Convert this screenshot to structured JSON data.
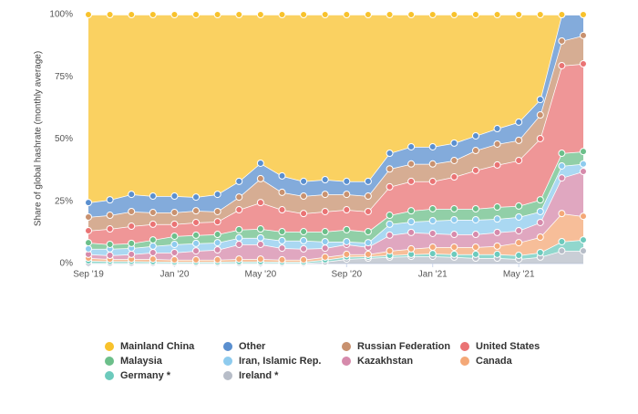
{
  "chart_data": {
    "type": "stacked-area",
    "y_label": "Share of global hashrate (monthly average)",
    "categories": [
      "Sep '19",
      null,
      null,
      null,
      "Jan '20",
      null,
      null,
      null,
      "May '20",
      null,
      null,
      null,
      "Sep '20",
      null,
      null,
      null,
      "Jan '21",
      null,
      null,
      null,
      "May '21",
      null,
      null,
      null
    ],
    "ylim": [
      0,
      100
    ],
    "yticks": [
      {
        "value": 0,
        "label": "0%"
      },
      {
        "value": 25,
        "label": "25%"
      },
      {
        "value": 50,
        "label": "50%"
      },
      {
        "value": 75,
        "label": "75%"
      },
      {
        "value": 100,
        "label": "100%"
      }
    ],
    "grid": false,
    "stacked": true,
    "series": [
      {
        "name": "Mainland China",
        "color": "#f8c22c",
        "values": [
          75.5,
          74.4,
          72.2,
          72.9,
          72.9,
          73.3,
          72.2,
          67.0,
          59.7,
          64.8,
          67.0,
          66.3,
          67.0,
          67.0,
          55.7,
          53.1,
          53.1,
          51.6,
          48.7,
          45.8,
          43.2,
          34.1,
          0,
          0
        ]
      },
      {
        "name": "Other",
        "color": "#5a8fcf",
        "values": [
          5.8,
          6.2,
          6.9,
          6.6,
          6.6,
          5.5,
          6.9,
          6.3,
          6.2,
          6.6,
          5.9,
          5.9,
          5.2,
          5.9,
          6.3,
          6.9,
          6.9,
          7.0,
          5.9,
          6.2,
          7.3,
          6.2,
          10.6,
          8.4
        ]
      },
      {
        "name": "Russian Federation",
        "color": "#c8916f",
        "values": [
          5.5,
          5.5,
          5.9,
          4.7,
          4.7,
          4.7,
          4.1,
          5.1,
          9.6,
          7.0,
          7.0,
          6.9,
          6.2,
          6.2,
          7.2,
          7.0,
          7.0,
          6.6,
          8.0,
          8.4,
          8.1,
          9.5,
          9.9,
          11.4
        ]
      },
      {
        "name": "United States",
        "color": "#ea7374",
        "values": [
          4.8,
          6.2,
          6.9,
          6.3,
          4.8,
          5.1,
          5.1,
          8.0,
          10.6,
          8.8,
          7.3,
          8.1,
          8.0,
          8.1,
          11.4,
          11.8,
          11.0,
          12.8,
          15.4,
          16.9,
          18.3,
          24.6,
          35.2,
          35.2
        ]
      },
      {
        "name": "Malaysia",
        "color": "#6cbf8a",
        "values": [
          2.5,
          1.8,
          1.9,
          2.5,
          3.3,
          3.3,
          3.3,
          3.3,
          3.6,
          3.6,
          3.6,
          4.0,
          4.8,
          4.4,
          3.6,
          4.4,
          4.8,
          4.4,
          4.4,
          4.8,
          4.4,
          4.7,
          5.1,
          5.0
        ]
      },
      {
        "name": "Iran, Islamic Rep.",
        "color": "#8ecbee",
        "values": [
          2.2,
          2.6,
          2.5,
          2.6,
          3.3,
          3.0,
          2.9,
          2.6,
          2.6,
          3.0,
          3.3,
          2.6,
          1.1,
          1.8,
          4.4,
          4.3,
          5.1,
          5.9,
          5.9,
          5.4,
          5.5,
          4.4,
          4.8,
          3.0
        ]
      },
      {
        "name": "Kazakhstan",
        "color": "#d68aab",
        "values": [
          1.5,
          1.5,
          1.9,
          2.6,
          2.9,
          3.6,
          4.0,
          5.9,
          5.9,
          4.7,
          4.4,
          3.6,
          4.0,
          2.9,
          6.3,
          6.6,
          5.5,
          5.1,
          5.1,
          5.5,
          4.8,
          5.9,
          14.3,
          18.0
        ]
      },
      {
        "name": "Canada",
        "color": "#f4a877",
        "values": [
          1.1,
          0.9,
          0.9,
          1.0,
          0.8,
          0.8,
          0.8,
          1.0,
          1.0,
          0.8,
          0.8,
          1.1,
          1.0,
          0.8,
          1.8,
          2.2,
          2.6,
          2.9,
          2.9,
          3.3,
          5.1,
          6.2,
          11.3,
          9.5
        ]
      },
      {
        "name": "Germany *",
        "color": "#6ccabc",
        "values": [
          0.9,
          0.7,
          0.7,
          0.6,
          0.5,
          0.5,
          0.5,
          0.6,
          0.6,
          0.5,
          0.5,
          0.8,
          0.9,
          0.7,
          0.7,
          0.8,
          1.1,
          1.1,
          1.5,
          1.5,
          1.5,
          1.8,
          3.7,
          4.4
        ]
      },
      {
        "name": "Ireland *",
        "color": "#b7bdc8",
        "values": [
          0.2,
          0.2,
          0.2,
          0.2,
          0.2,
          0.2,
          0.2,
          0.2,
          0.2,
          0.2,
          0.2,
          0.7,
          1.8,
          2.2,
          2.6,
          2.9,
          2.9,
          2.6,
          2.2,
          2.2,
          1.8,
          2.6,
          5.1,
          5.1
        ]
      }
    ]
  }
}
